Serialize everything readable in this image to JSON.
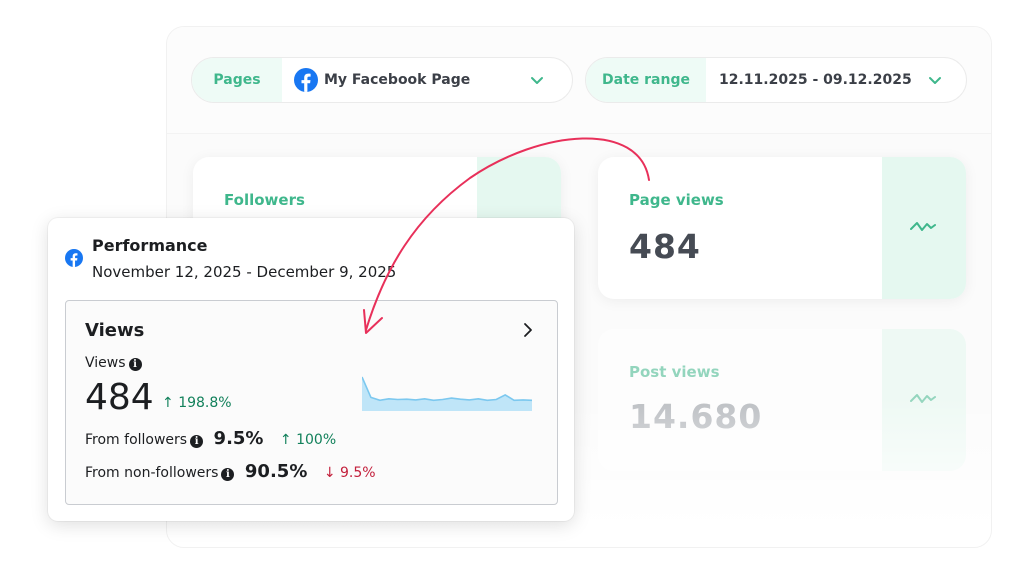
{
  "filters": {
    "pages": {
      "label": "Pages",
      "value": "My Facebook Page"
    },
    "date_range": {
      "label": "Date range",
      "value": "12.11.2025 - 09.12.2025"
    }
  },
  "stats": {
    "followers": {
      "label": "Followers"
    },
    "page_views": {
      "label": "Page views",
      "value": "484"
    },
    "post_views": {
      "label": "Post views",
      "value": "14.680"
    }
  },
  "performance": {
    "title": "Performance",
    "dates": "November 12, 2025 - December 9, 2025",
    "views": {
      "heading": "Views",
      "sub_label": "Views",
      "value": "484",
      "change": "198.8%",
      "from_followers": {
        "label": "From followers",
        "pct": "9.5%",
        "change": "100%"
      },
      "from_non_followers": {
        "label": "From non-followers",
        "pct": "90.5%",
        "change": "9.5%"
      }
    },
    "trend": [
      95,
      38,
      30,
      34,
      32,
      33,
      31,
      34,
      30,
      32,
      36,
      33,
      31,
      34,
      30,
      32,
      45,
      30,
      31,
      30
    ]
  },
  "colors": {
    "accent_green": "#3fb78c",
    "facebook_blue": "#1877f2",
    "positive": "#12815b",
    "negative": "#c3203c",
    "arrow": "#e8305a",
    "trend_line": "#7cc8ef"
  },
  "icons": {
    "facebook": "facebook-logo-icon",
    "chevron": "chevron-down-icon",
    "sparkline": "sparkline-icon",
    "info": "info-icon",
    "up": "arrow-up-icon",
    "down": "arrow-down-icon"
  }
}
